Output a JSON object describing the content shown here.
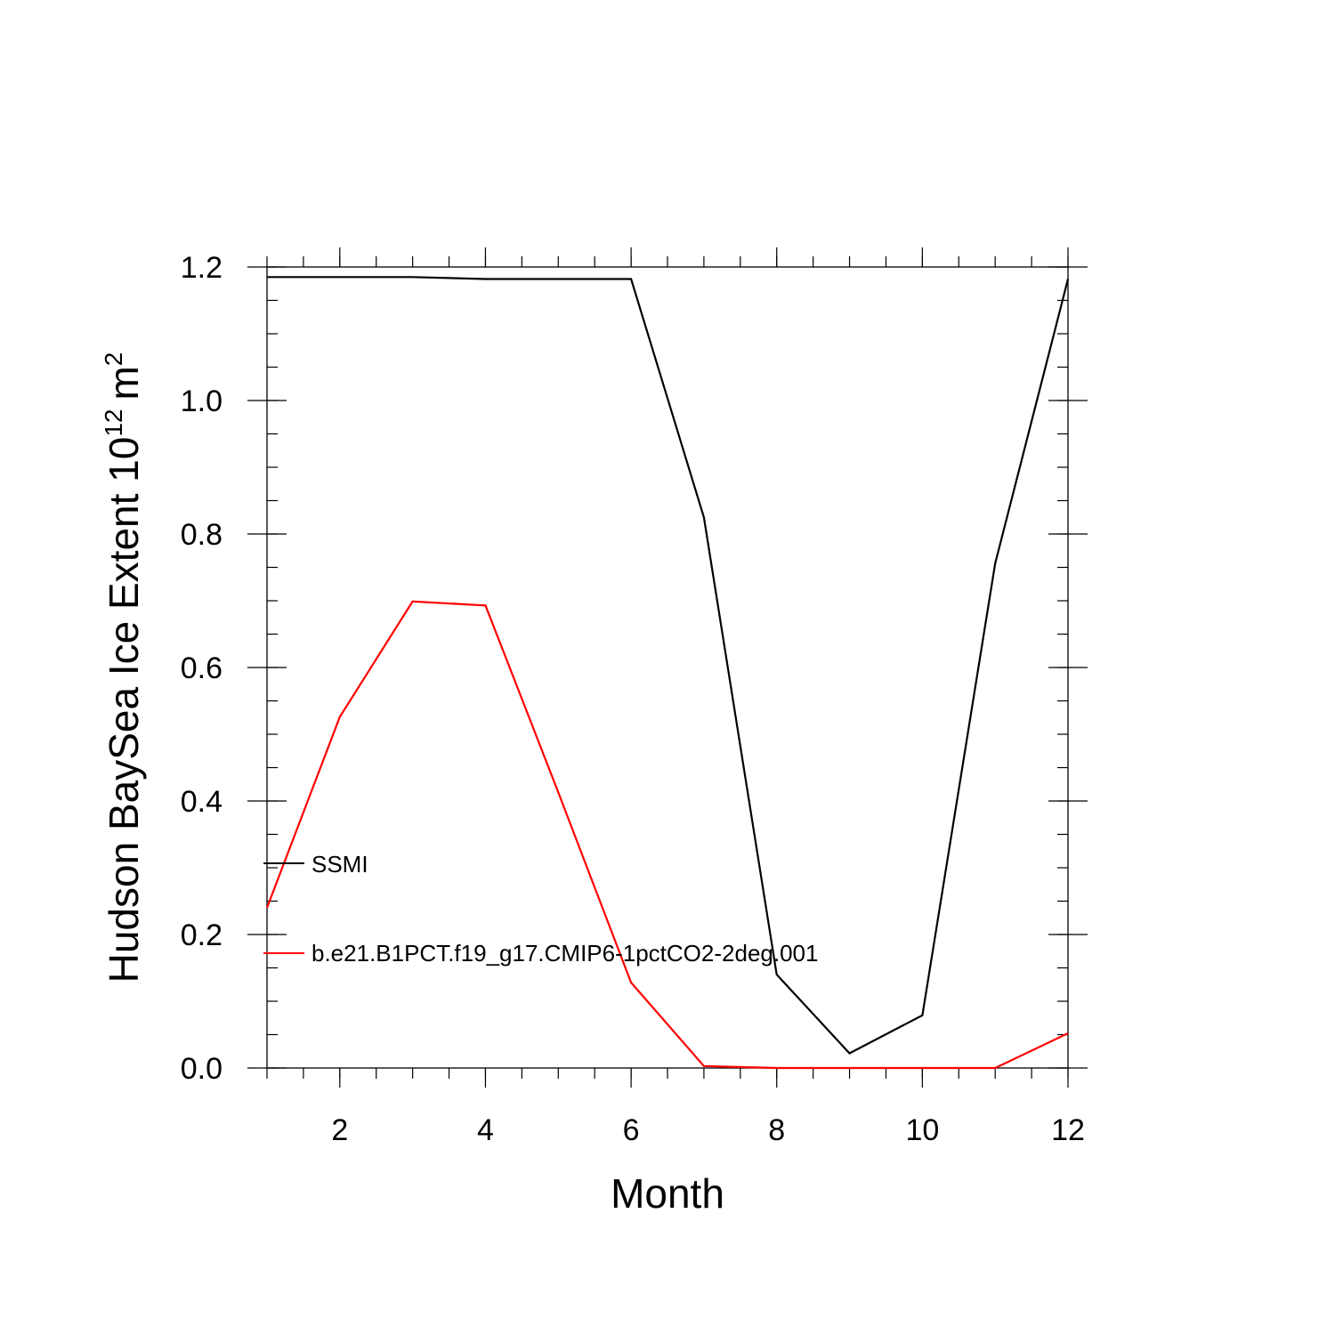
{
  "chart_data": {
    "type": "line",
    "title": "",
    "xlabel": "Month",
    "ylabel": "Hudson BaySea Ice Extent 10",
    "ylabel_sup": "12",
    "ylabel_unit": "m",
    "ylabel_unit_sup": "2",
    "xlim": [
      1,
      12
    ],
    "ylim": [
      0,
      1.2
    ],
    "xticks": [
      2,
      4,
      6,
      8,
      10,
      12
    ],
    "xtick_labels": [
      "2",
      "4",
      "6",
      "8",
      "10",
      "12"
    ],
    "yticks": [
      0,
      0.2,
      0.4,
      0.6,
      0.8,
      1.0,
      1.2
    ],
    "ytick_labels": [
      "0.0",
      "0.2",
      "0.4",
      "0.6",
      "0.8",
      "1.0",
      "1.2"
    ],
    "grid": false,
    "legend_position": "inside-lower-left",
    "x": [
      1,
      2,
      3,
      4,
      5,
      6,
      7,
      8,
      9,
      10,
      11,
      12
    ],
    "series": [
      {
        "name": "SSMI",
        "color": "#000000",
        "values": [
          1.185,
          1.185,
          1.185,
          1.182,
          1.182,
          1.182,
          0.825,
          0.14,
          0.022,
          0.079,
          0.756,
          1.182
        ]
      },
      {
        "name": "b.e21.B1PCT.f19_g17.CMIP6-1pctCO2-2deg.001",
        "color": "#ff0000",
        "values": [
          0.24,
          0.526,
          0.699,
          0.693,
          0.413,
          0.128,
          0.003,
          0.0,
          0.0,
          0.0,
          0.0,
          0.052
        ]
      }
    ]
  }
}
